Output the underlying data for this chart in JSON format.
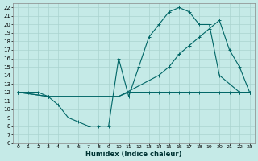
{
  "xlabel": "Humidex (Indice chaleur)",
  "bg_color": "#c5eae7",
  "grid_color": "#aad4d0",
  "line_color": "#006666",
  "xlim": [
    -0.5,
    23.5
  ],
  "ylim": [
    6,
    22.5
  ],
  "xticks": [
    0,
    1,
    2,
    3,
    4,
    5,
    6,
    7,
    8,
    9,
    10,
    11,
    12,
    13,
    14,
    15,
    16,
    17,
    18,
    19,
    20,
    21,
    22,
    23
  ],
  "yticks": [
    6,
    7,
    8,
    9,
    10,
    11,
    12,
    13,
    14,
    15,
    16,
    17,
    18,
    19,
    20,
    21,
    22
  ],
  "curve1_x": [
    0,
    1,
    2,
    3,
    4,
    5,
    6,
    7,
    8,
    9,
    10,
    11,
    12,
    13,
    14,
    15,
    16,
    17,
    18,
    19,
    20,
    22,
    23
  ],
  "curve1_y": [
    12,
    12,
    12,
    11.5,
    10.5,
    9,
    8.5,
    8,
    8,
    8,
    16,
    11.5,
    15,
    18.5,
    20,
    21.5,
    22,
    21.5,
    20,
    20,
    14,
    12,
    12
  ],
  "curve2_x": [
    0,
    3,
    10,
    14,
    15,
    16,
    17,
    18,
    19,
    20,
    21,
    22,
    23
  ],
  "curve2_y": [
    12,
    11.5,
    11.5,
    14,
    15,
    16.5,
    17.5,
    18.5,
    19.5,
    20.5,
    17,
    15,
    12
  ],
  "curve3_x": [
    0,
    3,
    10,
    11,
    12,
    13,
    14,
    15,
    16,
    17,
    18,
    19,
    20,
    21,
    22,
    23
  ],
  "curve3_y": [
    12,
    11.5,
    11.5,
    12,
    12,
    12,
    12,
    12,
    12,
    12,
    12,
    12,
    12,
    12,
    12,
    12
  ]
}
